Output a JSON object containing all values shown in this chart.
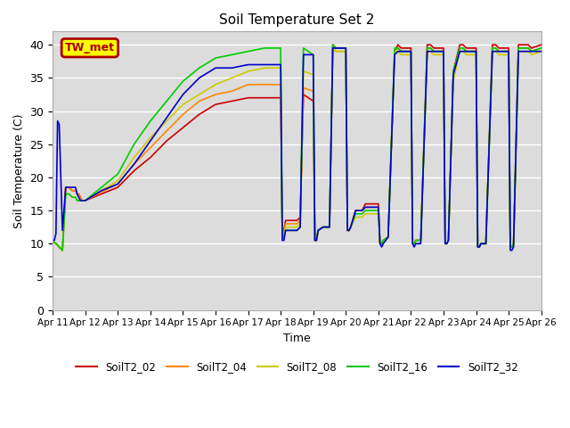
{
  "title": "Soil Temperature Set 2",
  "xlabel": "Time",
  "ylabel": "Soil Temperature (C)",
  "ylim": [
    0,
    42
  ],
  "xlim": [
    0,
    15
  ],
  "bg_color": "#dcdcdc",
  "annotation_text": "TW_met",
  "annotation_bg": "#ffff00",
  "annotation_border": "#aa0000",
  "series_order": [
    "SoilT2_02",
    "SoilT2_04",
    "SoilT2_08",
    "SoilT2_16",
    "SoilT2_32"
  ],
  "series": {
    "SoilT2_02": {
      "color": "#cc0000",
      "lw": 1.2
    },
    "SoilT2_04": {
      "color": "#ff8800",
      "lw": 1.2
    },
    "SoilT2_08": {
      "color": "#cccc00",
      "lw": 1.2
    },
    "SoilT2_16": {
      "color": "#00cc00",
      "lw": 1.2
    },
    "SoilT2_32": {
      "color": "#0000cc",
      "lw": 1.2
    }
  },
  "xtick_labels": [
    "Apr 11",
    "Apr 12",
    "Apr 13",
    "Apr 14",
    "Apr 15",
    "Apr 16",
    "Apr 17",
    "Apr 18",
    "Apr 19",
    "Apr 20",
    "Apr 21",
    "Apr 22",
    "Apr 23",
    "Apr 24",
    "Apr 25",
    "Apr 26"
  ],
  "ytick_vals": [
    0,
    5,
    10,
    15,
    20,
    25,
    30,
    35,
    40
  ],
  "data": {
    "x": [
      0.0,
      0.05,
      0.1,
      0.15,
      0.2,
      0.3,
      0.4,
      0.5,
      0.6,
      0.7,
      0.75,
      0.8,
      0.85,
      0.9,
      1.0,
      1.5,
      2.0,
      2.5,
      3.0,
      3.5,
      4.0,
      4.5,
      5.0,
      5.5,
      6.0,
      6.5,
      7.0,
      7.05,
      7.1,
      7.15,
      7.3,
      7.5,
      7.6,
      7.7,
      8.0,
      8.05,
      8.1,
      8.15,
      8.3,
      8.5,
      8.6,
      8.7,
      9.0,
      9.05,
      9.1,
      9.15,
      9.3,
      9.5,
      9.6,
      9.7,
      10.0,
      10.05,
      10.1,
      10.15,
      10.3,
      10.5,
      10.6,
      10.7,
      11.0,
      11.05,
      11.1,
      11.15,
      11.3,
      11.5,
      11.6,
      11.7,
      12.0,
      12.05,
      12.1,
      12.15,
      12.3,
      12.5,
      12.6,
      12.7,
      13.0,
      13.05,
      13.1,
      13.15,
      13.3,
      13.5,
      13.6,
      13.7,
      14.0,
      14.05,
      14.1,
      14.15,
      14.3,
      14.5,
      14.6,
      14.7,
      15.0
    ],
    "SoilT2_02": [
      10.5,
      10.2,
      10.0,
      9.8,
      9.5,
      9.0,
      18.5,
      18.5,
      18.0,
      18.0,
      17.5,
      17.5,
      17.0,
      16.5,
      16.5,
      17.5,
      18.5,
      21.0,
      23.0,
      25.5,
      27.5,
      29.5,
      31.0,
      31.5,
      32.0,
      32.0,
      32.0,
      12.0,
      12.0,
      13.5,
      13.5,
      13.5,
      14.0,
      32.5,
      31.5,
      10.5,
      10.5,
      12.0,
      12.5,
      12.5,
      40.0,
      39.5,
      39.5,
      12.0,
      12.0,
      12.5,
      15.0,
      15.0,
      16.0,
      16.0,
      16.0,
      10.0,
      10.0,
      10.5,
      11.0,
      39.0,
      40.0,
      39.5,
      39.5,
      10.0,
      10.0,
      10.5,
      10.5,
      40.0,
      40.0,
      39.5,
      39.5,
      10.0,
      10.0,
      10.5,
      36.0,
      40.0,
      40.0,
      39.5,
      39.5,
      9.5,
      9.5,
      10.0,
      10.0,
      40.0,
      40.0,
      39.5,
      39.5,
      9.5,
      9.5,
      10.0,
      40.0,
      40.0,
      40.0,
      39.5,
      40.0
    ],
    "SoilT2_04": [
      10.5,
      10.2,
      10.0,
      9.8,
      9.5,
      9.0,
      18.5,
      18.5,
      18.0,
      18.0,
      17.5,
      17.5,
      17.0,
      16.5,
      16.5,
      17.8,
      19.0,
      22.0,
      24.5,
      27.0,
      29.5,
      31.5,
      32.5,
      33.0,
      34.0,
      34.0,
      34.0,
      11.5,
      11.5,
      13.0,
      13.0,
      13.0,
      13.5,
      33.5,
      33.0,
      10.5,
      10.5,
      12.0,
      12.5,
      12.5,
      39.5,
      39.0,
      39.0,
      12.0,
      12.0,
      12.5,
      15.0,
      15.0,
      15.5,
      15.5,
      15.5,
      10.0,
      10.0,
      10.5,
      11.0,
      39.0,
      39.5,
      39.0,
      39.0,
      10.0,
      10.0,
      10.5,
      10.5,
      39.5,
      39.5,
      39.0,
      39.0,
      10.0,
      10.0,
      10.5,
      35.5,
      39.5,
      39.5,
      39.0,
      39.0,
      9.5,
      9.5,
      10.0,
      10.0,
      39.5,
      39.5,
      39.0,
      39.0,
      9.5,
      9.5,
      10.0,
      39.5,
      39.5,
      39.5,
      39.0,
      39.5
    ],
    "SoilT2_08": [
      10.5,
      10.2,
      10.0,
      9.8,
      9.5,
      9.0,
      17.5,
      17.5,
      17.0,
      17.0,
      16.5,
      16.5,
      16.5,
      16.5,
      16.5,
      18.0,
      19.5,
      23.0,
      26.0,
      28.5,
      31.0,
      32.5,
      34.0,
      35.0,
      36.0,
      36.5,
      36.5,
      11.0,
      11.0,
      12.5,
      12.5,
      12.5,
      13.0,
      36.0,
      35.5,
      10.5,
      10.5,
      12.0,
      12.5,
      12.5,
      39.5,
      39.0,
      39.0,
      12.0,
      12.0,
      12.5,
      14.0,
      14.0,
      14.5,
      14.5,
      14.5,
      10.0,
      10.0,
      10.5,
      11.0,
      39.0,
      39.0,
      38.5,
      38.5,
      10.0,
      10.0,
      10.5,
      10.5,
      39.0,
      39.0,
      38.5,
      38.5,
      10.0,
      10.0,
      10.5,
      34.5,
      39.0,
      39.0,
      38.5,
      38.5,
      9.5,
      9.5,
      10.0,
      10.0,
      39.0,
      39.0,
      38.5,
      38.5,
      9.5,
      9.5,
      10.0,
      39.0,
      39.0,
      39.0,
      38.5,
      39.0
    ],
    "SoilT2_16": [
      10.5,
      10.2,
      10.0,
      9.8,
      9.5,
      9.0,
      17.5,
      17.5,
      17.0,
      17.0,
      16.5,
      16.5,
      16.5,
      16.5,
      16.5,
      18.5,
      20.5,
      25.0,
      28.5,
      31.5,
      34.5,
      36.5,
      38.0,
      38.5,
      39.0,
      39.5,
      39.5,
      11.0,
      11.0,
      12.0,
      12.0,
      12.0,
      12.5,
      39.5,
      38.5,
      10.5,
      10.5,
      12.0,
      12.5,
      12.5,
      40.0,
      39.5,
      39.5,
      12.0,
      12.0,
      12.5,
      14.5,
      14.5,
      15.0,
      15.0,
      15.0,
      10.0,
      10.0,
      10.5,
      11.0,
      39.5,
      39.5,
      39.0,
      39.0,
      10.0,
      10.0,
      10.5,
      10.5,
      39.5,
      39.5,
      39.0,
      39.0,
      10.0,
      10.0,
      10.5,
      36.0,
      39.5,
      39.5,
      39.0,
      39.0,
      9.5,
      9.5,
      10.0,
      10.0,
      39.5,
      39.5,
      39.0,
      39.0,
      9.5,
      9.5,
      10.0,
      39.5,
      39.5,
      39.5,
      39.0,
      39.5
    ],
    "SoilT2_32": [
      10.5,
      10.5,
      11.5,
      28.5,
      28.0,
      12.0,
      18.5,
      18.5,
      18.5,
      18.5,
      17.5,
      17.0,
      16.5,
      16.5,
      16.5,
      18.0,
      19.0,
      22.0,
      25.5,
      29.0,
      32.5,
      35.0,
      36.5,
      36.5,
      37.0,
      37.0,
      37.0,
      10.5,
      10.5,
      12.0,
      12.0,
      12.0,
      12.5,
      38.5,
      38.5,
      10.5,
      10.5,
      12.0,
      12.5,
      12.5,
      39.5,
      39.5,
      39.5,
      12.0,
      12.0,
      12.5,
      15.0,
      15.0,
      15.5,
      15.5,
      15.5,
      10.0,
      9.5,
      10.0,
      11.0,
      38.5,
      39.0,
      39.0,
      39.0,
      10.0,
      9.5,
      10.0,
      10.0,
      39.0,
      39.0,
      39.0,
      39.0,
      10.0,
      10.0,
      10.5,
      35.5,
      39.0,
      39.0,
      39.0,
      39.0,
      9.5,
      9.5,
      10.0,
      10.0,
      39.0,
      39.0,
      39.0,
      39.0,
      9.0,
      9.0,
      9.5,
      39.0,
      39.0,
      39.0,
      39.0,
      39.0
    ]
  }
}
